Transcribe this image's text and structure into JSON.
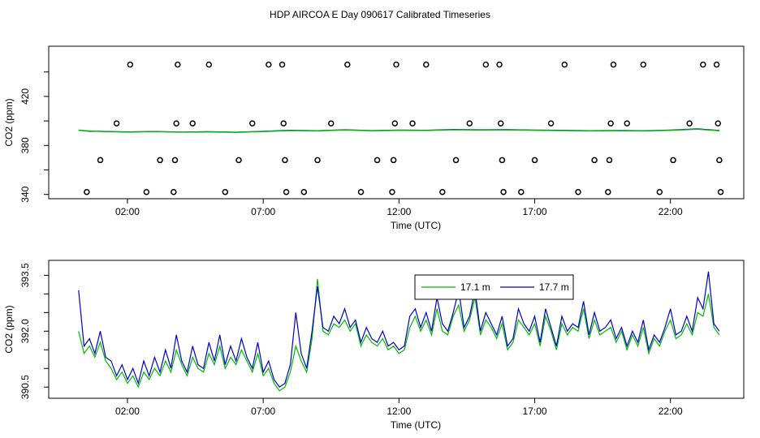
{
  "title": "HDP AIRCOA E  Day 090617  Calibrated Timeseries",
  "chart_data": [
    {
      "type": "scatter",
      "xlabel": "Time (UTC)",
      "ylabel": "CO2 (ppm)",
      "xlim": [
        -0.9,
        24.7
      ],
      "ylim": [
        336.5,
        461
      ],
      "x_tick_values": [
        2,
        7,
        12,
        17,
        22
      ],
      "x_tick_labels": [
        "02:00",
        "07:00",
        "12:00",
        "17:00",
        "22:00"
      ],
      "y_tick_values": [
        340,
        380,
        420
      ],
      "y_tick_labels": [
        "340",
        "380",
        "420"
      ],
      "y_ticks_unlabeled": [
        360,
        400,
        440
      ],
      "grid": false,
      "line_series": [
        {
          "name": "",
          "color": "#0000cc",
          "x": [
            0.2,
            0.6,
            1.0,
            2.0,
            3.0,
            4.0,
            5.0,
            6.0,
            7.0,
            8.0,
            9.0,
            10.0,
            11.0,
            12.0,
            13.0,
            14.0,
            15.0,
            16.0,
            17.0,
            18.0,
            19.0,
            20.0,
            21.0,
            22.0,
            23.0,
            23.8
          ],
          "y": [
            392.5,
            391.6,
            391.5,
            391.0,
            391.4,
            390.9,
            391.2,
            390.8,
            391.5,
            392.3,
            392.0,
            392.8,
            392.1,
            392.5,
            392.3,
            393.0,
            392.8,
            392.9,
            392.5,
            392.3,
            392.0,
            392.2,
            391.9,
            392.5,
            393.5,
            392.2
          ]
        },
        {
          "name": "",
          "color": "#00bb00",
          "x": [
            0.2,
            1.0,
            2.0,
            3.0,
            4.0,
            5.0,
            6.0,
            7.0,
            8.0,
            9.0,
            10.0,
            11.0,
            12.0,
            13.0,
            14.0,
            15.0,
            16.0,
            17.0,
            18.0,
            19.0,
            20.0,
            21.0,
            22.0,
            23.0,
            23.8
          ],
          "y": [
            392.3,
            391.4,
            390.9,
            391.2,
            390.8,
            391.0,
            390.7,
            391.3,
            392.1,
            391.9,
            392.6,
            392.0,
            392.3,
            392.2,
            392.8,
            392.6,
            392.7,
            392.3,
            392.1,
            391.9,
            392.0,
            391.8,
            392.3,
            393.2,
            392.0
          ]
        }
      ],
      "points": [
        {
          "x": 0.5,
          "y": 342
        },
        {
          "x": 1.0,
          "y": 368
        },
        {
          "x": 1.6,
          "y": 398
        },
        {
          "x": 2.1,
          "y": 446
        },
        {
          "x": 2.7,
          "y": 342
        },
        {
          "x": 3.2,
          "y": 368
        },
        {
          "x": 3.7,
          "y": 342
        },
        {
          "x": 3.75,
          "y": 368
        },
        {
          "x": 3.8,
          "y": 398
        },
        {
          "x": 3.85,
          "y": 446
        },
        {
          "x": 4.4,
          "y": 398
        },
        {
          "x": 5.0,
          "y": 446
        },
        {
          "x": 5.6,
          "y": 342
        },
        {
          "x": 6.1,
          "y": 368
        },
        {
          "x": 6.6,
          "y": 398
        },
        {
          "x": 7.2,
          "y": 446
        },
        {
          "x": 7.7,
          "y": 446
        },
        {
          "x": 7.75,
          "y": 398
        },
        {
          "x": 7.8,
          "y": 368
        },
        {
          "x": 7.85,
          "y": 342
        },
        {
          "x": 8.5,
          "y": 342
        },
        {
          "x": 9.0,
          "y": 368
        },
        {
          "x": 9.5,
          "y": 398
        },
        {
          "x": 10.1,
          "y": 446
        },
        {
          "x": 10.6,
          "y": 342
        },
        {
          "x": 11.2,
          "y": 368
        },
        {
          "x": 11.75,
          "y": 342
        },
        {
          "x": 11.8,
          "y": 368
        },
        {
          "x": 11.85,
          "y": 398
        },
        {
          "x": 11.9,
          "y": 446
        },
        {
          "x": 12.5,
          "y": 398
        },
        {
          "x": 13.0,
          "y": 446
        },
        {
          "x": 13.6,
          "y": 342
        },
        {
          "x": 14.1,
          "y": 368
        },
        {
          "x": 14.6,
          "y": 398
        },
        {
          "x": 15.2,
          "y": 446
        },
        {
          "x": 15.7,
          "y": 446
        },
        {
          "x": 15.75,
          "y": 398
        },
        {
          "x": 15.8,
          "y": 368
        },
        {
          "x": 15.85,
          "y": 342
        },
        {
          "x": 16.5,
          "y": 342
        },
        {
          "x": 17.0,
          "y": 368
        },
        {
          "x": 17.6,
          "y": 398
        },
        {
          "x": 18.1,
          "y": 446
        },
        {
          "x": 18.6,
          "y": 342
        },
        {
          "x": 19.2,
          "y": 368
        },
        {
          "x": 19.7,
          "y": 342
        },
        {
          "x": 19.75,
          "y": 368
        },
        {
          "x": 19.8,
          "y": 398
        },
        {
          "x": 19.9,
          "y": 446
        },
        {
          "x": 20.4,
          "y": 398
        },
        {
          "x": 21.0,
          "y": 446
        },
        {
          "x": 21.6,
          "y": 342
        },
        {
          "x": 22.1,
          "y": 368
        },
        {
          "x": 22.7,
          "y": 398
        },
        {
          "x": 23.2,
          "y": 446
        },
        {
          "x": 23.7,
          "y": 446
        },
        {
          "x": 23.75,
          "y": 398
        },
        {
          "x": 23.8,
          "y": 368
        },
        {
          "x": 23.85,
          "y": 342
        }
      ]
    },
    {
      "type": "line",
      "xlabel": "Time (UTC)",
      "ylabel": "CO2 (ppm)",
      "xlim": [
        -0.9,
        24.7
      ],
      "ylim": [
        390.2,
        393.9
      ],
      "x_tick_values": [
        2,
        7,
        12,
        17,
        22
      ],
      "x_tick_labels": [
        "02:00",
        "07:00",
        "12:00",
        "17:00",
        "22:00"
      ],
      "y_tick_values": [
        390.5,
        392.0,
        393.5
      ],
      "y_tick_labels": [
        "390.5",
        "392.0",
        "393.5"
      ],
      "y_ticks_unlabeled": [
        391.0,
        391.5,
        392.5,
        393.0
      ],
      "grid": false,
      "legend": "top-center",
      "series": [
        {
          "name": "17.1 m",
          "color": "#00bb00",
          "x": [
            0.2,
            0.4,
            0.6,
            0.8,
            1.0,
            1.2,
            1.4,
            1.6,
            1.8,
            2.0,
            2.2,
            2.4,
            2.6,
            2.8,
            3.0,
            3.2,
            3.4,
            3.6,
            3.8,
            4.0,
            4.2,
            4.4,
            4.6,
            4.8,
            5.0,
            5.2,
            5.4,
            5.6,
            5.8,
            6.0,
            6.2,
            6.4,
            6.6,
            6.8,
            7.0,
            7.2,
            7.4,
            7.6,
            7.8,
            8.0,
            8.2,
            8.4,
            8.6,
            8.8,
            9.0,
            9.2,
            9.4,
            9.6,
            9.8,
            10.0,
            10.2,
            10.4,
            10.6,
            10.8,
            11.0,
            11.2,
            11.4,
            11.6,
            11.8,
            12.0,
            12.2,
            12.4,
            12.6,
            12.8,
            13.0,
            13.2,
            13.4,
            13.6,
            13.8,
            14.0,
            14.2,
            14.4,
            14.6,
            14.8,
            15.0,
            15.2,
            15.4,
            15.6,
            15.8,
            16.0,
            16.2,
            16.4,
            16.6,
            16.8,
            17.0,
            17.2,
            17.4,
            17.6,
            17.8,
            18.0,
            18.2,
            18.4,
            18.6,
            18.8,
            19.0,
            19.2,
            19.4,
            19.6,
            19.8,
            20.0,
            20.2,
            20.4,
            20.6,
            20.8,
            21.0,
            21.2,
            21.4,
            21.6,
            21.8,
            22.0,
            22.2,
            22.4,
            22.6,
            22.8,
            23.0,
            23.2,
            23.4,
            23.6,
            23.8
          ],
          "y": [
            392.0,
            391.4,
            391.6,
            391.3,
            391.7,
            391.2,
            391.0,
            390.7,
            390.9,
            390.6,
            390.8,
            390.5,
            390.9,
            390.7,
            391.0,
            390.8,
            391.2,
            390.9,
            391.5,
            391.1,
            390.8,
            391.3,
            391.0,
            390.9,
            391.4,
            391.1,
            391.6,
            391.0,
            391.3,
            391.1,
            391.5,
            391.2,
            390.9,
            391.4,
            390.8,
            391.0,
            390.6,
            390.4,
            390.5,
            390.9,
            391.6,
            391.2,
            390.9,
            391.8,
            393.4,
            392.0,
            391.9,
            392.2,
            392.1,
            392.3,
            392.0,
            392.2,
            391.6,
            391.9,
            391.7,
            391.6,
            391.8,
            391.5,
            391.6,
            391.4,
            391.5,
            392.1,
            392.4,
            392.0,
            392.3,
            391.9,
            392.6,
            392.0,
            391.9,
            392.4,
            392.7,
            392.0,
            392.3,
            392.9,
            391.9,
            392.3,
            392.1,
            391.8,
            392.2,
            391.5,
            391.7,
            392.3,
            392.1,
            391.9,
            392.2,
            391.6,
            392.4,
            392.0,
            391.5,
            392.2,
            391.9,
            392.1,
            392.0,
            392.6,
            391.8,
            392.3,
            391.9,
            392.0,
            392.1,
            391.7,
            392.0,
            391.5,
            391.9,
            391.6,
            392.1,
            391.4,
            391.8,
            391.6,
            392.0,
            392.3,
            391.8,
            391.9,
            392.2,
            391.9,
            392.5,
            392.4,
            393.0,
            392.1,
            391.9
          ]
        },
        {
          "name": "17.7 m",
          "color": "#0000cc",
          "x": [
            0.2,
            0.4,
            0.6,
            0.8,
            1.0,
            1.2,
            1.4,
            1.6,
            1.8,
            2.0,
            2.2,
            2.4,
            2.6,
            2.8,
            3.0,
            3.2,
            3.4,
            3.6,
            3.8,
            4.0,
            4.2,
            4.4,
            4.6,
            4.8,
            5.0,
            5.2,
            5.4,
            5.6,
            5.8,
            6.0,
            6.2,
            6.4,
            6.6,
            6.8,
            7.0,
            7.2,
            7.4,
            7.6,
            7.8,
            8.0,
            8.2,
            8.4,
            8.6,
            8.8,
            9.0,
            9.2,
            9.4,
            9.6,
            9.8,
            10.0,
            10.2,
            10.4,
            10.6,
            10.8,
            11.0,
            11.2,
            11.4,
            11.6,
            11.8,
            12.0,
            12.2,
            12.4,
            12.6,
            12.8,
            13.0,
            13.2,
            13.4,
            13.6,
            13.8,
            14.0,
            14.2,
            14.4,
            14.6,
            14.8,
            15.0,
            15.2,
            15.4,
            15.6,
            15.8,
            16.0,
            16.2,
            16.4,
            16.6,
            16.8,
            17.0,
            17.2,
            17.4,
            17.6,
            17.8,
            18.0,
            18.2,
            18.4,
            18.6,
            18.8,
            19.0,
            19.2,
            19.4,
            19.6,
            19.8,
            20.0,
            20.2,
            20.4,
            20.6,
            20.8,
            21.0,
            21.2,
            21.4,
            21.6,
            21.8,
            22.0,
            22.2,
            22.4,
            22.6,
            22.8,
            23.0,
            23.2,
            23.4,
            23.6,
            23.8
          ],
          "y": [
            393.1,
            391.6,
            391.8,
            391.4,
            392.0,
            391.3,
            391.2,
            390.8,
            391.1,
            390.7,
            391.0,
            390.6,
            391.2,
            390.8,
            391.3,
            390.9,
            391.5,
            391.0,
            391.9,
            391.2,
            390.9,
            391.6,
            391.1,
            391.0,
            391.7,
            391.2,
            391.9,
            391.1,
            391.6,
            391.2,
            391.8,
            391.3,
            391.0,
            391.7,
            390.9,
            391.2,
            390.7,
            390.5,
            390.6,
            391.1,
            392.5,
            391.4,
            391.0,
            392.0,
            393.2,
            392.1,
            392.0,
            392.4,
            392.2,
            392.6,
            392.1,
            392.3,
            391.7,
            392.1,
            391.8,
            391.7,
            392.0,
            391.6,
            391.7,
            391.5,
            391.6,
            392.4,
            392.6,
            392.1,
            392.5,
            392.0,
            392.9,
            392.2,
            392.0,
            392.5,
            393.1,
            392.1,
            392.4,
            393.1,
            392.0,
            392.5,
            392.2,
            391.9,
            392.4,
            391.6,
            391.8,
            392.6,
            392.2,
            392.0,
            392.4,
            391.7,
            392.6,
            392.1,
            391.6,
            392.4,
            392.0,
            392.2,
            392.1,
            392.8,
            391.9,
            392.5,
            392.0,
            392.1,
            392.3,
            391.8,
            392.1,
            391.6,
            392.0,
            391.7,
            392.3,
            391.5,
            391.9,
            391.7,
            392.1,
            392.6,
            391.9,
            392.0,
            392.4,
            392.0,
            392.9,
            392.6,
            393.6,
            392.2,
            392.0
          ]
        }
      ]
    }
  ]
}
